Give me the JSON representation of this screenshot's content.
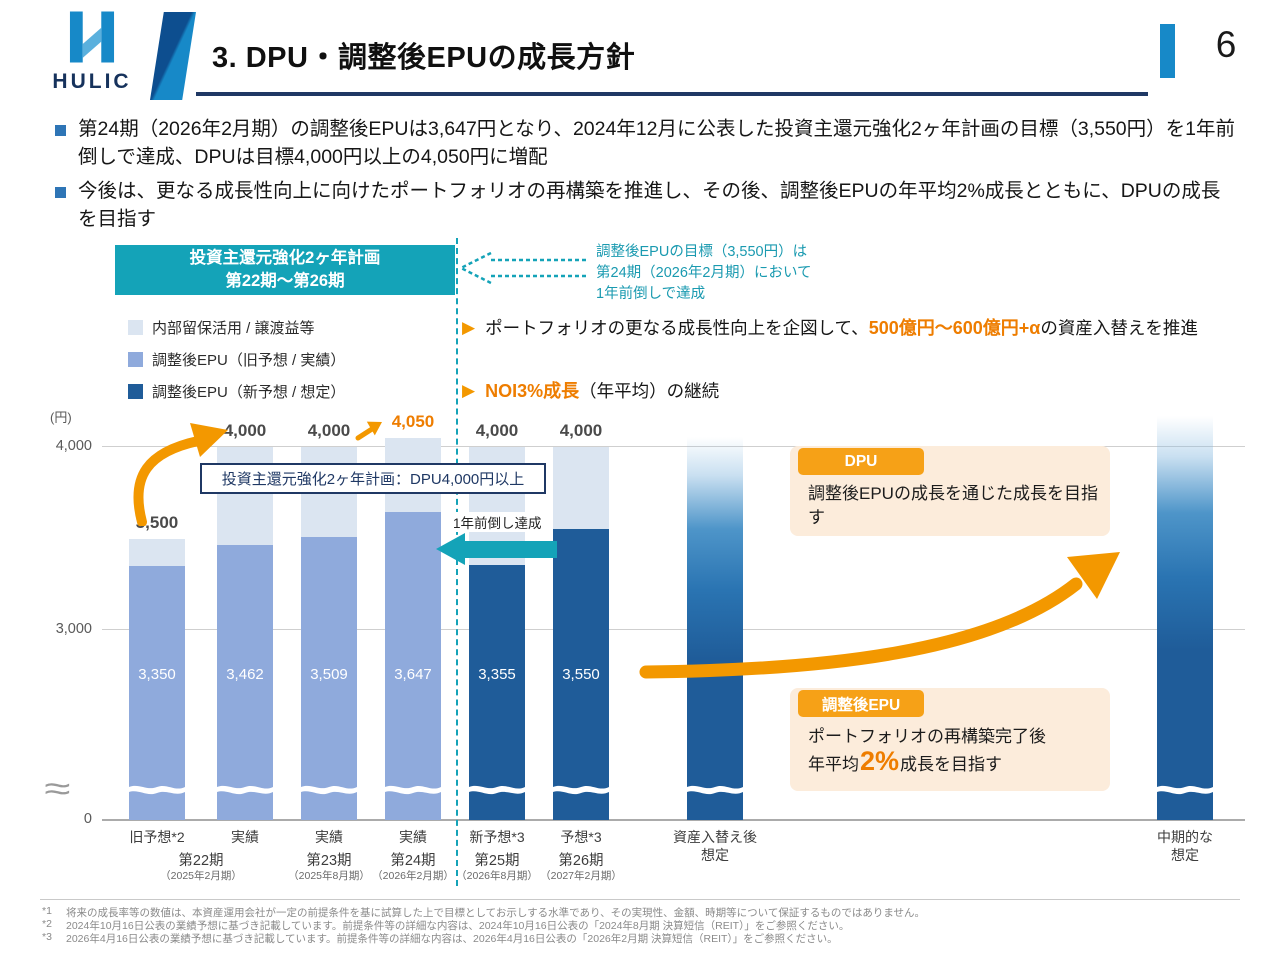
{
  "colors": {
    "navy": "#1f3864",
    "teal": "#14a3b8",
    "teal_text": "#1a9ab0",
    "orange": "#f39800",
    "orange_text": "#ee7d00",
    "peach": "#fcecdb",
    "bar_light": "#dbe5f1",
    "bar_mid": "#8faadc",
    "bar_dark": "#1f5c99",
    "accent_blue": "#1789c8"
  },
  "header": {
    "logo": "HULIC",
    "title": "3. DPU・調整後EPUの成長方針",
    "page_number": "6"
  },
  "bullets": [
    "第24期（2026年2月期）の調整後EPUは3,647円となり、2024年12月に公表した投資主還元強化2ヶ年計画の目標（3,550円）を1年前倒しで達成、DPUは目標4,000円以上の4,050円に増配",
    "今後は、更なる成長性向上に向けたポートフォリオの再構築を推進し、その後、調整後EPUの年平均2%成長とともに、DPUの成長を目指す"
  ],
  "plan_box": {
    "line1": "投資主還元強化2ヶ年計画",
    "line2": "第22期～第26期"
  },
  "plan_note": "調整後EPUの目標（3,550円）は\n第24期（2026年2月期）において\n1年前倒しで達成",
  "growth_points": {
    "p1_pre": "ポートフォリオの更なる成長性向上を企図して、",
    "p1_highlight": "500億円～600億円+α",
    "p1_post": "の資産入替えを推進",
    "p2_highlight": "NOI3%成長",
    "p2_post": "（年平均）の継続"
  },
  "annotations": {
    "target_box": "投資主還元強化2ヶ年計画：DPU4,000円以上",
    "early_achieved": "1年前倒し達成",
    "dpu_tag": "DPU",
    "dpu_text": "調整後EPUの成長を通じた成長を目指す",
    "epu_tag": "調整後EPU",
    "epu_line1": "ポートフォリオの再構築完了後",
    "epu_line2_pre": "年平均",
    "epu_line2_big": "2%",
    "epu_line2_post": "成長を目指す"
  },
  "chart_data": {
    "type": "bar",
    "stacked": true,
    "ylabel": "(円)",
    "yticks": [
      "4,000",
      "3,000",
      "0"
    ],
    "ylim_display": [
      3000,
      4200
    ],
    "axis_break": true,
    "grid": true,
    "legend_position": "top-left",
    "legend": [
      {
        "label": "内部留保活用 / 譲渡益等",
        "key": "light",
        "color": "#dbe5f1"
      },
      {
        "label": "調整後EPU（旧予想 / 実績）",
        "key": "old",
        "color": "#8faadc"
      },
      {
        "label": "調整後EPU（新予想 / 想定）",
        "key": "new",
        "color": "#1f5c99"
      }
    ],
    "bars": [
      {
        "category": [
          "旧予想*2"
        ],
        "epu": 3350,
        "epu_label": "3,350",
        "total": 3500,
        "total_label": "3,500",
        "style": "old"
      },
      {
        "category": [
          "実績"
        ],
        "epu": 3462,
        "epu_label": "3,462",
        "total": 4000,
        "total_label": "4,000",
        "style": "old"
      },
      {
        "category": [
          "実績"
        ],
        "epu": 3509,
        "epu_label": "3,509",
        "total": 4000,
        "total_label": "4,000",
        "style": "old"
      },
      {
        "category": [
          "実績"
        ],
        "epu": 3647,
        "epu_label": "3,647",
        "total": 4050,
        "total_label": "4,050",
        "style": "old",
        "total_label_style": "orange"
      },
      {
        "category": [
          "新予想*3"
        ],
        "epu": 3355,
        "epu_label": "3,355",
        "total": 4000,
        "total_label": "4,000",
        "style": "new"
      },
      {
        "category": [
          "予想*3"
        ],
        "epu": 3550,
        "epu_label": "3,550",
        "total": 4000,
        "total_label": "4,000",
        "style": "new"
      },
      {
        "category": [
          "資産入替え後",
          "想定"
        ],
        "style": "gradient"
      },
      {
        "category": [
          "中期的な",
          "想定"
        ],
        "style": "gradient"
      }
    ],
    "periods": [
      {
        "label": "第22期",
        "sub": "（2025年2月期）",
        "bars": [
          0,
          1
        ]
      },
      {
        "label": "第23期",
        "sub": "（2025年8月期）",
        "bars": [
          2
        ]
      },
      {
        "label": "第24期",
        "sub": "（2026年2月期）",
        "bars": [
          3
        ]
      },
      {
        "label": "第25期",
        "sub": "（2026年8月期）",
        "bars": [
          4
        ]
      },
      {
        "label": "第26期",
        "sub": "（2027年2月期）",
        "bars": [
          5
        ]
      }
    ]
  },
  "footnotes": [
    {
      "mark": "*1",
      "text": "将来の成長率等の数値は、本資産運用会社が一定の前提条件を基に試算した上で目標としてお示しする水準であり、その実現性、金額、時期等について保証するものではありません。"
    },
    {
      "mark": "*2",
      "text": "2024年10月16日公表の業績予想に基づき記載しています。前提条件等の詳細な内容は、2024年10月16日公表の「2024年8月期 決算短信（REIT）」をご参照ください。"
    },
    {
      "mark": "*3",
      "text": "2026年4月16日公表の業績予想に基づき記載しています。前提条件等の詳細な内容は、2026年4月16日公表の「2026年2月期 決算短信（REIT）」をご参照ください。"
    }
  ]
}
